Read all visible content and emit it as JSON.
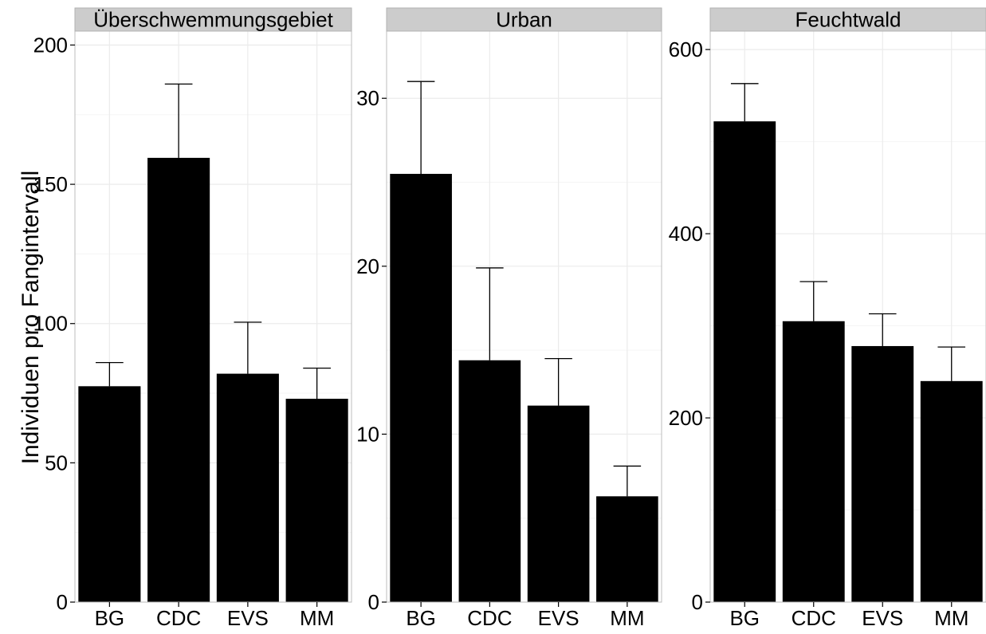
{
  "chart_data": {
    "type": "bar",
    "ylabel": "Individuen pro Fangintervall",
    "xlabel": "",
    "categories": [
      "BG",
      "CDC",
      "EVS",
      "MM"
    ],
    "colors": {
      "bar": "#000000",
      "strip": "#cccccc",
      "strip_border": "#b2b2b2",
      "grid_major": "#ebebeb",
      "grid_minor": "#f5f5f5",
      "panel_border": "#bdbdbd"
    },
    "grid": true,
    "panels": [
      {
        "title": "Überschwemmungsgebiet",
        "ylim": [
          0,
          205
        ],
        "yticks": [
          0,
          50,
          100,
          150,
          200
        ],
        "values": [
          77.5,
          159.5,
          82,
          73
        ],
        "errors": [
          86,
          186,
          100.5,
          84
        ]
      },
      {
        "title": "Urban",
        "ylim": [
          0,
          34
        ],
        "yticks": [
          0,
          10,
          20,
          30
        ],
        "values": [
          25.5,
          14.4,
          11.7,
          6.3
        ],
        "errors": [
          31,
          19.9,
          14.5,
          8.1
        ]
      },
      {
        "title": "Feuchtwald",
        "ylim": [
          0,
          620
        ],
        "yticks": [
          0,
          200,
          400,
          600
        ],
        "values": [
          522,
          305,
          278,
          240
        ],
        "errors": [
          563,
          348,
          313,
          277
        ]
      }
    ]
  }
}
